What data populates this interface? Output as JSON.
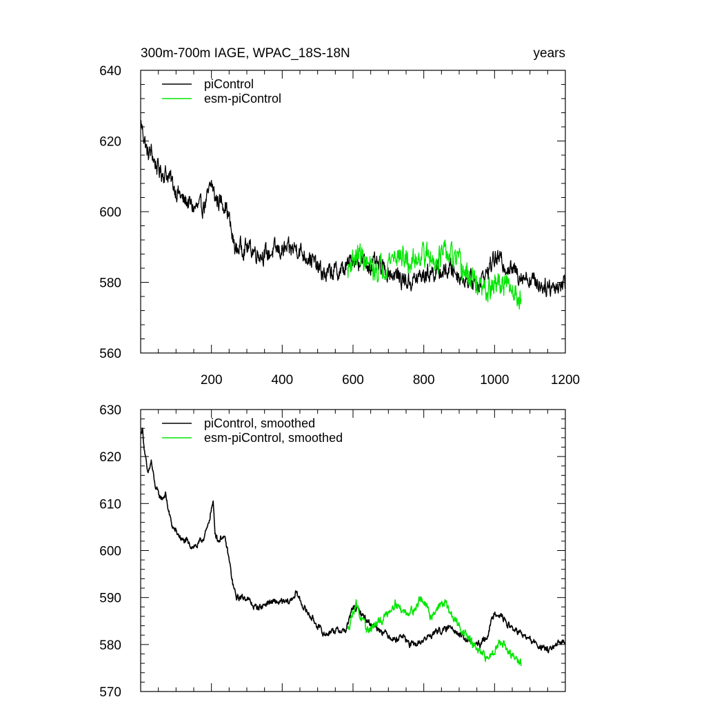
{
  "chart_data": [
    {
      "type": "line",
      "title": "300m-700m IAGE, WPAC_18S-18N",
      "title_right": "years",
      "xlim": [
        0,
        1200
      ],
      "ylim": [
        560,
        640
      ],
      "x_ticks": [
        200,
        400,
        600,
        800,
        1000,
        1200
      ],
      "x_tick_labels": [
        "200",
        "400",
        "600",
        "800",
        "1000",
        "1200"
      ],
      "y_ticks": [
        560,
        580,
        600,
        620,
        640
      ],
      "y_tick_labels": [
        "560",
        "580",
        "600",
        "620",
        "640"
      ],
      "grid": false,
      "legend_position": "top-left",
      "series": [
        {
          "name": "piControl",
          "color": "#000000",
          "x": [
            1,
            10,
            20,
            30,
            40,
            50,
            60,
            70,
            80,
            90,
            100,
            110,
            120,
            130,
            140,
            150,
            160,
            170,
            180,
            190,
            200,
            210,
            220,
            230,
            240,
            250,
            260,
            270,
            280,
            290,
            300,
            320,
            340,
            360,
            380,
            400,
            420,
            440,
            460,
            480,
            500,
            520,
            540,
            560,
            580,
            600,
            620,
            640,
            660,
            680,
            700,
            720,
            740,
            760,
            780,
            800,
            820,
            840,
            860,
            880,
            900,
            920,
            940,
            960,
            980,
            1000,
            1020,
            1040,
            1060,
            1080,
            1100,
            1120,
            1140,
            1160,
            1180,
            1200
          ],
          "y": [
            625,
            621,
            616,
            617,
            614,
            612,
            611,
            611,
            610,
            608,
            606,
            605,
            603,
            603,
            602,
            601,
            601,
            601,
            602,
            604,
            608,
            604,
            603,
            603,
            602,
            598,
            592,
            589,
            590,
            590,
            590,
            589,
            588,
            588,
            589,
            589,
            589,
            590,
            588,
            587,
            584,
            582,
            583,
            583,
            584,
            587,
            586,
            585,
            585,
            584,
            583,
            582,
            581,
            580,
            581,
            582,
            583,
            583,
            583,
            584,
            582,
            581,
            580,
            580,
            583,
            587,
            586,
            584,
            583,
            582,
            581,
            580,
            579,
            579,
            579,
            580
          ],
          "noise_amplitude": 3.5
        },
        {
          "name": "esm-piControl",
          "color": "#00e600",
          "x": [
            585,
            600,
            620,
            640,
            660,
            680,
            700,
            720,
            740,
            760,
            780,
            800,
            820,
            840,
            860,
            880,
            900,
            920,
            940,
            960,
            980,
            1000,
            1020,
            1040,
            1060,
            1075
          ],
          "y": [
            583,
            587,
            588,
            585,
            583,
            584,
            586,
            588,
            587,
            585,
            587,
            589,
            586,
            587,
            588,
            587,
            585,
            582,
            581,
            578,
            577,
            579,
            580,
            578,
            577,
            576
          ],
          "noise_amplitude": 4.5
        }
      ]
    },
    {
      "type": "line",
      "title": "",
      "xlim": [
        0,
        1200
      ],
      "ylim": [
        570,
        630
      ],
      "x_ticks": [
        200,
        400,
        600,
        800,
        1000,
        1200
      ],
      "x_tick_labels": [],
      "y_ticks": [
        570,
        580,
        590,
        600,
        610,
        620,
        630
      ],
      "y_tick_labels": [
        "570",
        "580",
        "590",
        "600",
        "610",
        "620",
        "630"
      ],
      "grid": false,
      "legend_position": "top-left",
      "series": [
        {
          "name": "piControl, smoothed",
          "color": "#000000",
          "x": [
            1,
            5,
            10,
            20,
            30,
            40,
            50,
            60,
            70,
            80,
            90,
            100,
            110,
            120,
            130,
            140,
            150,
            160,
            170,
            180,
            190,
            200,
            205,
            210,
            220,
            230,
            240,
            250,
            260,
            270,
            280,
            290,
            300,
            320,
            340,
            360,
            380,
            400,
            420,
            440,
            460,
            480,
            500,
            520,
            540,
            560,
            580,
            600,
            620,
            640,
            660,
            680,
            700,
            720,
            740,
            760,
            780,
            800,
            820,
            840,
            860,
            880,
            900,
            920,
            940,
            960,
            980,
            1000,
            1020,
            1040,
            1060,
            1080,
            1100,
            1120,
            1140,
            1160,
            1180,
            1200
          ],
          "y": [
            625,
            626,
            622,
            616,
            619,
            614,
            612,
            611,
            612,
            608,
            605,
            604,
            603,
            602,
            602,
            601,
            601,
            601,
            602,
            603,
            605,
            609,
            610,
            604,
            602,
            603,
            602,
            598,
            593,
            590,
            590,
            590,
            590,
            588,
            588,
            589,
            589,
            589,
            589,
            591,
            588,
            586,
            584,
            582,
            583,
            583,
            583,
            588,
            587,
            585,
            584,
            583,
            582,
            581,
            582,
            580,
            580,
            581,
            582,
            583,
            583,
            584,
            582,
            581,
            580,
            580,
            582,
            587,
            586,
            584,
            583,
            582,
            581,
            580,
            579,
            579,
            580,
            581
          ],
          "noise_amplitude": 0.9
        },
        {
          "name": "esm-piControl, smoothed",
          "color": "#00e600",
          "x": [
            585,
            600,
            610,
            620,
            640,
            660,
            680,
            700,
            720,
            740,
            760,
            780,
            790,
            800,
            820,
            840,
            860,
            880,
            900,
            920,
            940,
            960,
            980,
            1000,
            1020,
            1040,
            1060,
            1075
          ],
          "y": [
            583,
            587,
            589,
            586,
            583,
            584,
            585,
            587,
            589,
            587,
            587,
            588,
            590,
            589,
            586,
            588,
            589,
            586,
            584,
            582,
            580,
            578,
            577,
            579,
            581,
            578,
            577,
            576
          ],
          "noise_amplitude": 1.2
        }
      ]
    }
  ]
}
